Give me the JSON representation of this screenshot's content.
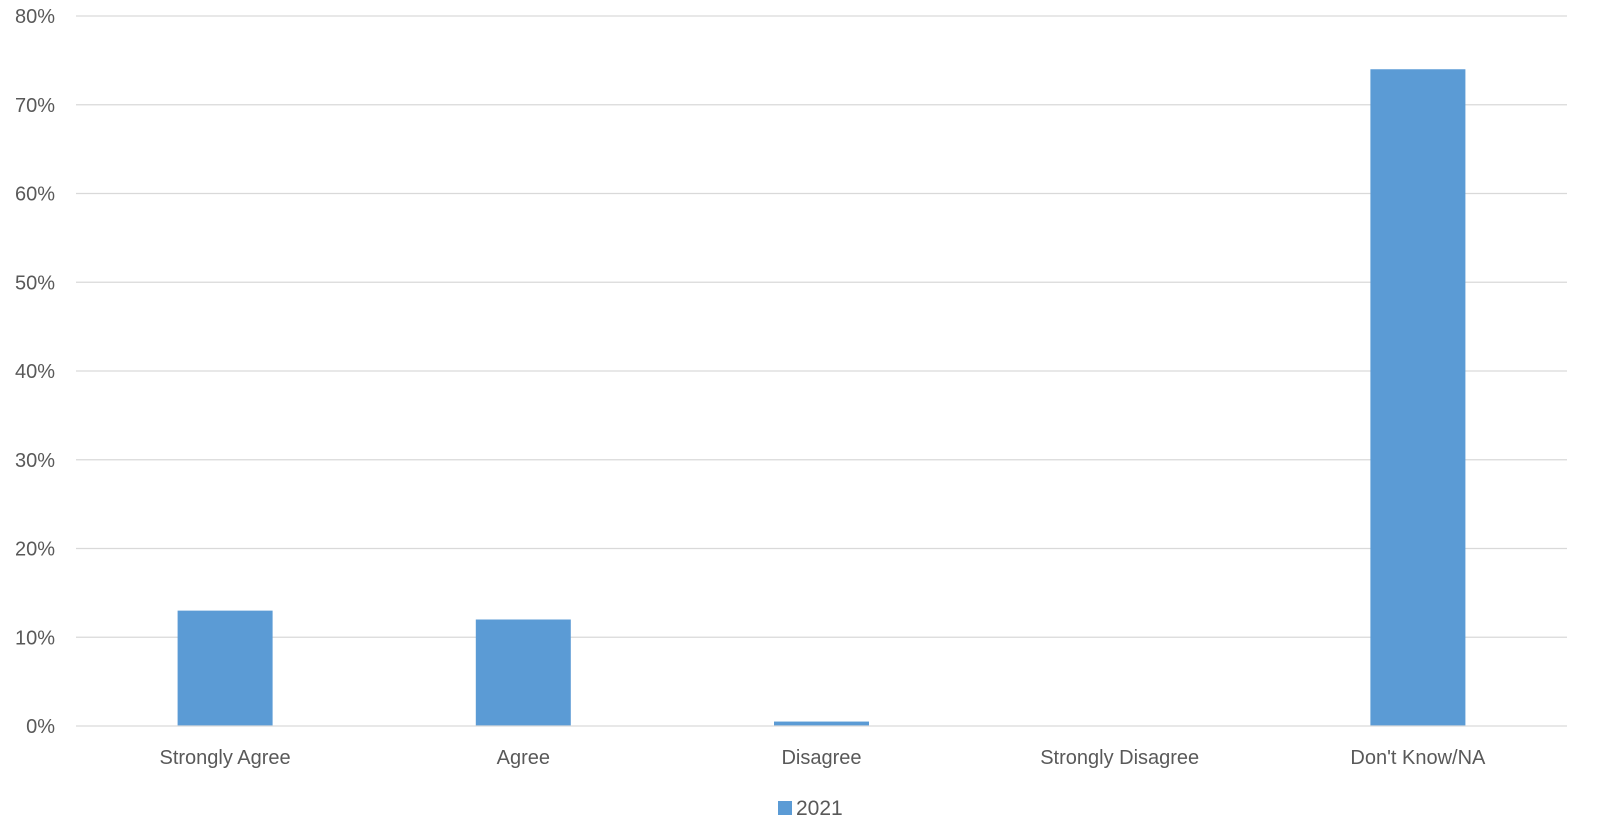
{
  "chart_data": {
    "type": "bar",
    "categories": [
      "Strongly Agree",
      "Agree",
      "Disagree",
      "Strongly Disagree",
      "Don't Know/NA"
    ],
    "series": [
      {
        "name": "2021",
        "values": [
          13,
          12,
          0.5,
          0,
          74
        ]
      }
    ],
    "title": "",
    "xlabel": "",
    "ylabel": "",
    "ylim": [
      0,
      80
    ],
    "yticks": [
      0,
      10,
      20,
      30,
      40,
      50,
      60,
      70,
      80
    ],
    "ytick_suffix": "%",
    "grid": true,
    "legend_position": "bottom",
    "colors": {
      "series": "#5b9bd5",
      "grid": "#d9d9d9",
      "text": "#595959"
    }
  }
}
